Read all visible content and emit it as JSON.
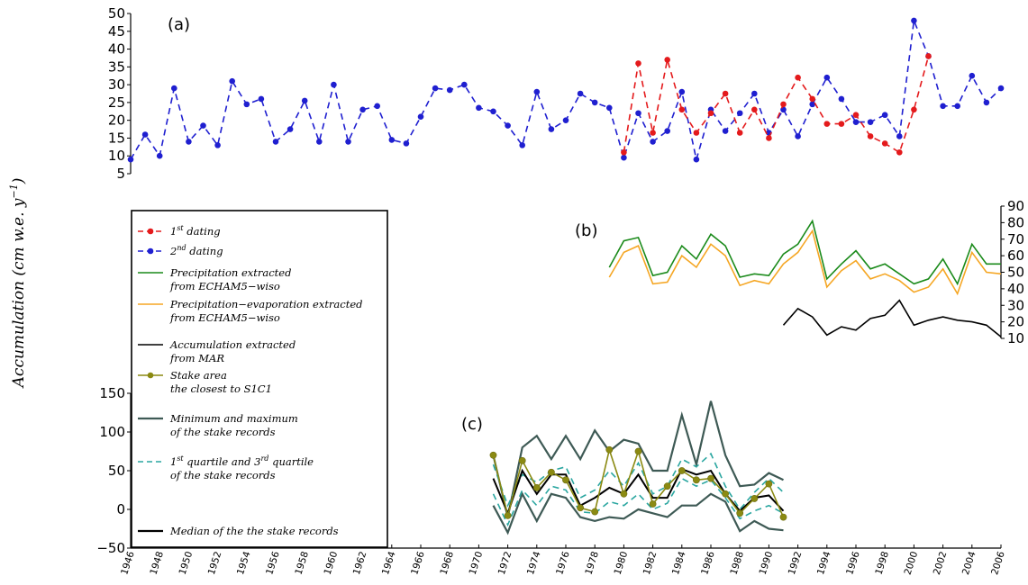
{
  "ylabel": {
    "main": "Accumulation (cm w.e. y",
    "exp": "−1",
    "close": ")"
  },
  "colors": {
    "first_dating": "#e41a1c",
    "second_dating": "#1f1fd0",
    "precip": "#1a8a1a",
    "pe": "#f5a623",
    "mar": "#000000",
    "stake": "#8b8a12",
    "minmax": "#3e5a55",
    "quartile": "#2aa6a0",
    "median": "#000000"
  },
  "legend": {
    "items": [
      {
        "key": "first_dating",
        "style": "dashed-dot",
        "lines": [
          [
            "1",
            "st",
            " dating"
          ]
        ]
      },
      {
        "key": "second_dating",
        "style": "dashed-dot",
        "lines": [
          [
            "2",
            "nd",
            " dating"
          ]
        ]
      },
      {
        "key": "precip",
        "style": "solid",
        "lines": [
          [
            "Precipitation extracted"
          ],
          [
            "from ECHAM5−wiso"
          ]
        ]
      },
      {
        "key": "pe",
        "style": "solid",
        "lines": [
          [
            "Precipitation−evaporation extracted"
          ],
          [
            "from ECHAM5−wiso"
          ]
        ]
      },
      {
        "key": "mar",
        "style": "solid",
        "lines": [
          [
            "Accumulation extracted"
          ],
          [
            "from MAR"
          ]
        ]
      },
      {
        "key": "stake",
        "style": "solid-dot",
        "lines": [
          [
            "Stake area"
          ],
          [
            "the closest to S1C1"
          ]
        ]
      },
      {
        "key": "minmax",
        "style": "solid-thick",
        "lines": [
          [
            "Minimum and maximum"
          ],
          [
            "of the stake records"
          ]
        ]
      },
      {
        "key": "quartile",
        "style": "dashed",
        "lines": [
          [
            "1",
            "st",
            " quartile and 3",
            "rd",
            " quartile"
          ],
          [
            "of the stake records"
          ]
        ]
      },
      {
        "key": "median",
        "style": "solid-thick",
        "lines": [
          [
            "Median of the the stake records"
          ]
        ]
      }
    ]
  },
  "chart_data": [
    {
      "panel": "(a)",
      "type": "line",
      "ylim": [
        5,
        50
      ],
      "yticks": [
        "5",
        "10",
        "15",
        "20",
        "25",
        "30",
        "35",
        "40",
        "45",
        "50"
      ],
      "series": [
        {
          "name": "1st dating",
          "x": [
            1980,
            1981,
            1982,
            1983,
            1984,
            1985,
            1986,
            1987,
            1988,
            1989,
            1990,
            1991,
            1992,
            1993,
            1994,
            1995,
            1996,
            1997,
            1998,
            1999,
            2000,
            2001
          ],
          "values": [
            11,
            36,
            16.5,
            37,
            23,
            16.5,
            22,
            27.5,
            16.5,
            23,
            15,
            24.5,
            32,
            26,
            19,
            19,
            21.5,
            15.5,
            13.5,
            11,
            23,
            38
          ]
        },
        {
          "name": "2nd dating",
          "x": [
            1946,
            1947,
            1948,
            1949,
            1950,
            1951,
            1952,
            1953,
            1954,
            1955,
            1956,
            1957,
            1958,
            1959,
            1960,
            1961,
            1962,
            1963,
            1964,
            1965,
            1966,
            1967,
            1968,
            1969,
            1970,
            1971,
            1972,
            1973,
            1974,
            1975,
            1976,
            1977,
            1978,
            1979,
            1980,
            1981,
            1982,
            1983,
            1984,
            1985,
            1986,
            1987,
            1988,
            1989,
            1990,
            1991,
            1992,
            1993,
            1994,
            1995,
            1996,
            1997,
            1998,
            1999,
            2000,
            2001,
            2002,
            2003,
            2004,
            2005,
            2006
          ],
          "values": [
            9,
            16,
            10,
            29,
            14,
            18.5,
            13,
            31,
            24.5,
            26,
            14,
            17.5,
            25.5,
            14,
            30,
            14,
            23,
            24,
            14.5,
            13.5,
            21,
            29,
            28.5,
            30,
            23.5,
            22.5,
            18.5,
            13,
            28,
            17.5,
            20,
            27.5,
            25,
            23.5,
            9.5,
            22,
            14,
            17,
            28,
            9,
            23,
            17,
            22,
            27.5,
            16.5,
            23,
            15.5,
            24.5,
            32,
            26,
            19.5,
            19.5,
            21.5,
            15.5,
            48,
            38,
            24,
            24,
            32.5,
            25,
            29
          ]
        }
      ]
    },
    {
      "panel": "(b)",
      "type": "line",
      "ylim": [
        10,
        90
      ],
      "yticks": [
        "10",
        "20",
        "30",
        "40",
        "50",
        "60",
        "70",
        "80",
        "90"
      ],
      "series": [
        {
          "name": "Precipitation extracted from ECHAM5−wiso",
          "x": [
            1979,
            1980,
            1981,
            1982,
            1983,
            1984,
            1985,
            1986,
            1987,
            1988,
            1989,
            1990,
            1991,
            1992,
            1993,
            1994,
            1995,
            1996,
            1997,
            1998,
            1999,
            2000,
            2001,
            2002,
            2003,
            2004,
            2005,
            2006
          ],
          "values": [
            53,
            69,
            71,
            48,
            50,
            66,
            58,
            73,
            66,
            47,
            49,
            48,
            61,
            67,
            81,
            46,
            55,
            63,
            52,
            55,
            49,
            43,
            46,
            58,
            43,
            67,
            55,
            55
          ]
        },
        {
          "name": "Precipitation−evaporation extracted from ECHAM5−wiso",
          "x": [
            1979,
            1980,
            1981,
            1982,
            1983,
            1984,
            1985,
            1986,
            1987,
            1988,
            1989,
            1990,
            1991,
            1992,
            1993,
            1994,
            1995,
            1996,
            1997,
            1998,
            1999,
            2000,
            2001,
            2002,
            2003,
            2004,
            2005,
            2006
          ],
          "values": [
            47,
            62,
            66,
            43,
            44,
            60,
            53,
            67,
            60,
            42,
            45,
            43,
            55,
            62,
            75,
            41,
            51,
            57,
            46,
            49,
            45,
            38,
            41,
            52,
            37,
            62,
            50,
            49
          ]
        },
        {
          "name": "Accumulation extracted from MAR",
          "x": [
            1991,
            1992,
            1993,
            1994,
            1995,
            1996,
            1997,
            1998,
            1999,
            2000,
            2001,
            2002,
            2003,
            2004,
            2005,
            2006
          ],
          "values": [
            18,
            28,
            23,
            12,
            17,
            15,
            22,
            24,
            33,
            18,
            21,
            23,
            21,
            20,
            18,
            11
          ]
        }
      ]
    },
    {
      "panel": "(c)",
      "type": "line",
      "ylim": [
        -50,
        150
      ],
      "yticks": [
        "−50",
        "0",
        "50",
        "100",
        "150"
      ],
      "xlim": [
        1946,
        2006
      ],
      "xticks": [
        "1946",
        "1948",
        "1950",
        "1952",
        "1954",
        "1956",
        "1958",
        "1960",
        "1962",
        "1964",
        "1966",
        "1968",
        "1970",
        "1972",
        "1974",
        "1976",
        "1978",
        "1980",
        "1982",
        "1984",
        "1986",
        "1988",
        "1990",
        "1992",
        "1994",
        "1996",
        "1998",
        "2000",
        "2002",
        "2004",
        "2006"
      ],
      "x": [
        1971,
        1972,
        1973,
        1974,
        1975,
        1976,
        1977,
        1978,
        1979,
        1980,
        1981,
        1982,
        1983,
        1984,
        1985,
        1986,
        1987,
        1988,
        1989,
        1990,
        1991
      ],
      "series": [
        {
          "name": "Stake area the closest to S1C1",
          "values": [
            70,
            -8,
            63,
            28,
            48,
            38,
            2,
            -3,
            77,
            20,
            75,
            7,
            30,
            50,
            38,
            40,
            20,
            -5,
            14,
            33,
            -10
          ]
        },
        {
          "name": "Maximum of the stake records",
          "values": [
            70,
            -10,
            80,
            95,
            65,
            95,
            65,
            102,
            75,
            90,
            85,
            50,
            50,
            122,
            58,
            140,
            70,
            30,
            32,
            47,
            38
          ]
        },
        {
          "name": "Minimum of the stake records",
          "values": [
            5,
            -30,
            20,
            -15,
            20,
            15,
            -10,
            -15,
            -10,
            -12,
            0,
            -5,
            -10,
            5,
            5,
            20,
            10,
            -28,
            -15,
            -25,
            -27
          ]
        },
        {
          "name": "3rd quartile of the stake records",
          "values": [
            58,
            5,
            45,
            35,
            50,
            55,
            15,
            25,
            50,
            30,
            60,
            20,
            30,
            65,
            55,
            72,
            30,
            0,
            22,
            40,
            22
          ]
        },
        {
          "name": "1st quartile of the stake records",
          "values": [
            20,
            -20,
            25,
            5,
            30,
            25,
            -3,
            -5,
            10,
            5,
            20,
            0,
            8,
            40,
            30,
            38,
            15,
            -12,
            -2,
            5,
            -5
          ]
        },
        {
          "name": "Median of the the stake records",
          "values": [
            40,
            -5,
            50,
            20,
            45,
            45,
            5,
            15,
            28,
            20,
            45,
            15,
            15,
            52,
            45,
            50,
            20,
            -2,
            15,
            18,
            -2
          ]
        }
      ]
    }
  ]
}
